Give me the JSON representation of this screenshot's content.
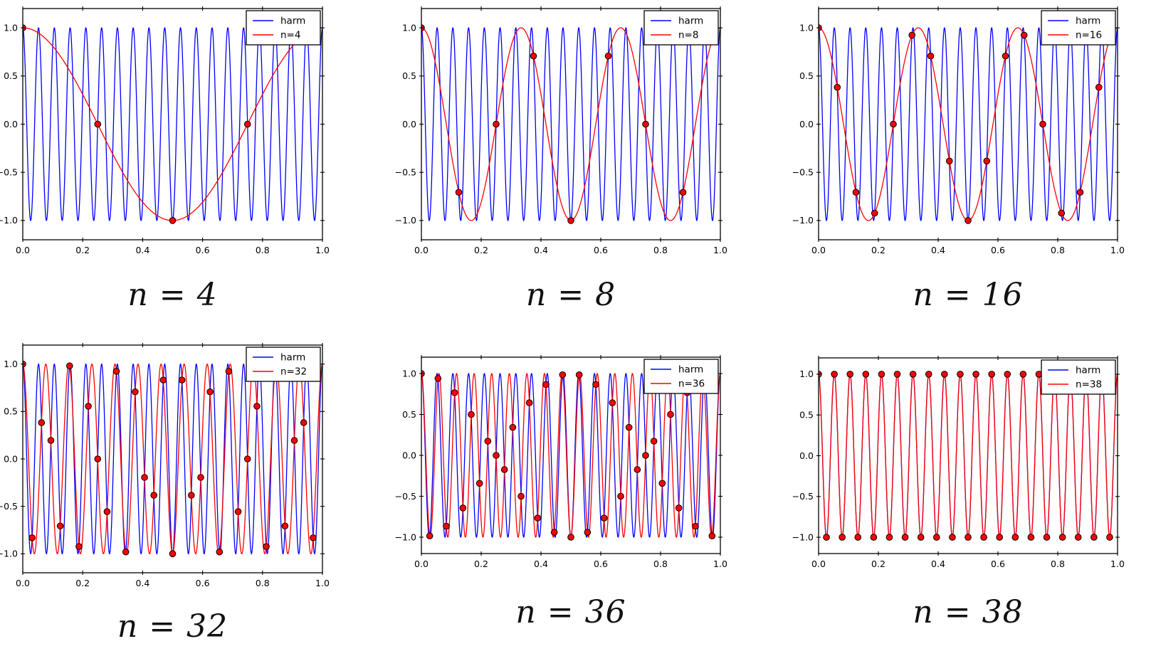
{
  "figure": {
    "background": "#ffffff",
    "axes_color": "#000000",
    "tick_label_color": "#000000"
  },
  "chart_data": [
    {
      "type": "line",
      "caption": "n = 4",
      "n_samples": 4,
      "xlim": [
        0,
        1
      ],
      "ylim": [
        -1.2,
        1.2
      ],
      "xtick_values": [
        0.0,
        0.2,
        0.4,
        0.6,
        0.8,
        1.0
      ],
      "xtick_labels": [
        "0.0",
        "0.2",
        "0.4",
        "0.6",
        "0.8",
        "1.0"
      ],
      "ytick_values": [
        1.0,
        0.5,
        0.0,
        -0.5,
        -1.0
      ],
      "ytick_labels": [
        "1.0",
        "0.5",
        "0.0",
        "−0.5",
        "−1.0"
      ],
      "legend": {
        "position": "upper right",
        "entries": [
          {
            "label": "harm",
            "color": "#0000ff"
          },
          {
            "label": "n=4",
            "color": "#ff0000"
          }
        ]
      },
      "series": [
        {
          "name": "harm",
          "color": "#0000ff",
          "formula": "cos(2*pi*19*t)",
          "freq": 19
        },
        {
          "name": "n=4",
          "color": "#ff0000",
          "formula": "cos(2*pi*1*t)",
          "freq": 1
        }
      ],
      "samples": {
        "marker": "circle",
        "fill": "#ff0000",
        "edge": "#000000",
        "t_rule": "t_k = k/4, k=0..3",
        "y": [
          1.0,
          0.0,
          -1.0,
          0.0
        ]
      }
    },
    {
      "type": "line",
      "caption": "n = 8",
      "n_samples": 8,
      "xlim": [
        0,
        1
      ],
      "ylim": [
        -1.2,
        1.2
      ],
      "xtick_values": [
        0.0,
        0.2,
        0.4,
        0.6,
        0.8,
        1.0
      ],
      "xtick_labels": [
        "0.0",
        "0.2",
        "0.4",
        "0.6",
        "0.8",
        "1.0"
      ],
      "ytick_values": [
        1.0,
        0.5,
        0.0,
        -0.5,
        -1.0
      ],
      "ytick_labels": [
        "1.0",
        "0.5",
        "0.0",
        "−0.5",
        "−1.0"
      ],
      "legend": {
        "position": "upper right",
        "entries": [
          {
            "label": "harm",
            "color": "#0000ff"
          },
          {
            "label": "n=8",
            "color": "#ff0000"
          }
        ]
      },
      "series": [
        {
          "name": "harm",
          "color": "#0000ff",
          "formula": "cos(2*pi*19*t)",
          "freq": 19
        },
        {
          "name": "n=8",
          "color": "#ff0000",
          "formula": "cos(2*pi*3*t)",
          "freq": 3
        }
      ],
      "samples": {
        "marker": "circle",
        "fill": "#ff0000",
        "edge": "#000000",
        "t_rule": "t_k = k/8, k=0..7",
        "y": [
          1.0,
          -0.7071,
          0.0,
          0.7071,
          -1.0,
          0.7071,
          0.0,
          -0.7071
        ]
      }
    },
    {
      "type": "line",
      "caption": "n = 16",
      "n_samples": 16,
      "xlim": [
        0,
        1
      ],
      "ylim": [
        -1.2,
        1.2
      ],
      "xtick_values": [
        0.0,
        0.2,
        0.4,
        0.6,
        0.8,
        1.0
      ],
      "xtick_labels": [
        "0.0",
        "0.2",
        "0.4",
        "0.6",
        "0.8",
        "1.0"
      ],
      "ytick_values": [
        1.0,
        0.5,
        0.0,
        -0.5,
        -1.0
      ],
      "ytick_labels": [
        "1.0",
        "0.5",
        "0.0",
        "−0.5",
        "−1.0"
      ],
      "legend": {
        "position": "upper right",
        "entries": [
          {
            "label": "harm",
            "color": "#0000ff"
          },
          {
            "label": "n=16",
            "color": "#ff0000"
          }
        ]
      },
      "series": [
        {
          "name": "harm",
          "color": "#0000ff",
          "formula": "cos(2*pi*19*t)",
          "freq": 19
        },
        {
          "name": "n=16",
          "color": "#ff0000",
          "formula": "cos(2*pi*3*t)",
          "freq": 3
        }
      ],
      "samples": {
        "marker": "circle",
        "fill": "#ff0000",
        "edge": "#000000",
        "t_rule": "t_k = k/16, k=0..15",
        "y": [
          1.0,
          0.3827,
          -0.7071,
          -0.9239,
          0.0,
          0.9239,
          0.7071,
          -0.3827,
          -1.0,
          -0.3827,
          0.7071,
          0.9239,
          0.0,
          -0.9239,
          -0.7071,
          0.3827
        ]
      }
    },
    {
      "type": "line",
      "caption": "n = 32",
      "n_samples": 32,
      "xlim": [
        0,
        1
      ],
      "ylim": [
        -1.2,
        1.2
      ],
      "xtick_values": [
        0.0,
        0.2,
        0.4,
        0.6,
        0.8,
        1.0
      ],
      "xtick_labels": [
        "0.0",
        "0.2",
        "0.4",
        "0.6",
        "0.8",
        "1.0"
      ],
      "ytick_values": [
        1.0,
        0.5,
        0.0,
        -0.5,
        -1.0
      ],
      "ytick_labels": [
        "1.0",
        "0.5",
        "0.0",
        "−0.5",
        "−1.0"
      ],
      "legend": {
        "position": "upper right",
        "entries": [
          {
            "label": "harm",
            "color": "#0000ff"
          },
          {
            "label": "n=32",
            "color": "#ff0000"
          }
        ]
      },
      "series": [
        {
          "name": "harm",
          "color": "#0000ff",
          "formula": "cos(2*pi*19*t)",
          "freq": 19
        },
        {
          "name": "n=32",
          "color": "#ff0000",
          "formula": "cos(2*pi*13*t)",
          "freq": 13
        }
      ],
      "samples": {
        "marker": "circle",
        "fill": "#ff0000",
        "edge": "#000000",
        "t_rule": "t_k = k/32, k=0..31",
        "y": [
          1.0,
          -0.8315,
          0.3827,
          0.1951,
          -0.7071,
          0.9808,
          -0.9239,
          0.5556,
          0.0,
          -0.5556,
          0.9239,
          -0.9808,
          0.7071,
          -0.1951,
          -0.3827,
          0.8315,
          -1.0,
          0.8315,
          -0.3827,
          -0.1951,
          0.7071,
          -0.9808,
          0.9239,
          -0.5556,
          0.0,
          0.5556,
          -0.9239,
          0.9808,
          -0.7071,
          0.1951,
          0.3827,
          -0.8315
        ]
      }
    },
    {
      "type": "line",
      "caption": "n = 36",
      "n_samples": 36,
      "xlim": [
        0,
        1
      ],
      "ylim": [
        -1.2,
        1.2
      ],
      "xtick_values": [
        0.0,
        0.2,
        0.4,
        0.6,
        0.8,
        1.0
      ],
      "xtick_labels": [
        "0.0",
        "0.2",
        "0.4",
        "0.6",
        "0.8",
        "1.0"
      ],
      "ytick_values": [
        1.0,
        0.5,
        0.0,
        -0.5,
        -1.0
      ],
      "ytick_labels": [
        "1.0",
        "0.5",
        "0.0",
        "−0.5",
        "−1.0"
      ],
      "legend": {
        "position": "upper right",
        "entries": [
          {
            "label": "harm",
            "color": "#0000ff"
          },
          {
            "label": "n=36",
            "color": "#ff0000"
          }
        ]
      },
      "series": [
        {
          "name": "harm",
          "color": "#0000ff",
          "formula": "cos(2*pi*19*t)",
          "freq": 19
        },
        {
          "name": "n=36",
          "color": "#ff0000",
          "formula": "cos(2*pi*17*t)",
          "freq": 17
        }
      ],
      "samples": {
        "marker": "circle",
        "fill": "#ff0000",
        "edge": "#000000",
        "t_rule": "t_k = k/36, k=0..35",
        "y": [
          1.0,
          -0.9848,
          0.9397,
          -0.866,
          0.766,
          -0.6428,
          0.5,
          -0.342,
          0.1736,
          0.0,
          -0.1736,
          0.342,
          -0.5,
          0.6428,
          -0.766,
          0.866,
          -0.9397,
          0.9848,
          -1.0,
          0.9848,
          -0.9397,
          0.866,
          -0.766,
          0.6428,
          -0.5,
          0.342,
          -0.1736,
          0.0,
          0.1736,
          -0.342,
          0.5,
          -0.6428,
          0.766,
          -0.866,
          0.9397,
          -0.9848
        ]
      }
    },
    {
      "type": "line",
      "caption": "n = 38",
      "n_samples": 38,
      "xlim": [
        0,
        1
      ],
      "ylim": [
        -1.2,
        1.2
      ],
      "xtick_values": [
        0.0,
        0.2,
        0.4,
        0.6,
        0.8,
        1.0
      ],
      "xtick_labels": [
        "0.0",
        "0.2",
        "0.4",
        "0.6",
        "0.8",
        "1.0"
      ],
      "ytick_values": [
        1.0,
        0.5,
        0.0,
        -0.5,
        -1.0
      ],
      "ytick_labels": [
        "1.0",
        "0.5",
        "0.0",
        "−0.5",
        "−1.0"
      ],
      "legend": {
        "position": "upper right",
        "entries": [
          {
            "label": "harm",
            "color": "#0000ff"
          },
          {
            "label": "n=38",
            "color": "#ff0000"
          }
        ]
      },
      "series": [
        {
          "name": "harm",
          "color": "#0000ff",
          "formula": "cos(2*pi*19*t)",
          "freq": 19
        },
        {
          "name": "n=38",
          "color": "#ff0000",
          "formula": "cos(2*pi*19*t)",
          "freq": 19
        }
      ],
      "samples": {
        "marker": "circle",
        "fill": "#ff0000",
        "edge": "#000000",
        "t_rule": "t_k = k/38, k=0..37",
        "y": [
          1.0,
          -1.0,
          1.0,
          -1.0,
          1.0,
          -1.0,
          1.0,
          -1.0,
          1.0,
          -1.0,
          1.0,
          -1.0,
          1.0,
          -1.0,
          1.0,
          -1.0,
          1.0,
          -1.0,
          1.0,
          -1.0,
          1.0,
          -1.0,
          1.0,
          -1.0,
          1.0,
          -1.0,
          1.0,
          -1.0,
          1.0,
          -1.0,
          1.0,
          -1.0,
          1.0,
          -1.0,
          1.0,
          -1.0,
          1.0,
          -1.0
        ]
      }
    }
  ]
}
